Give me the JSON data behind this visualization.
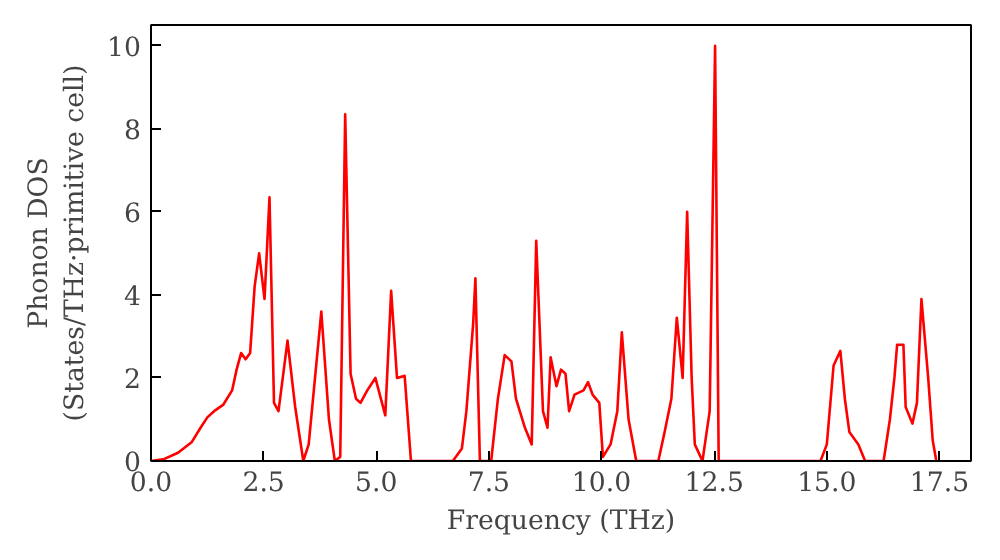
{
  "chart_data": {
    "type": "line",
    "xlabel": "Frequency (THz)",
    "ylabel": "Phonon DOS\n(States/THz·primitive cell)",
    "xlim": [
      0,
      18.2
    ],
    "ylim": [
      0,
      10.5
    ],
    "xticks": [
      {
        "value": 0,
        "label": "0.0"
      },
      2.5,
      {
        "value": 5,
        "label": "5.0"
      },
      7.5,
      {
        "value": 10,
        "label": "10.0"
      },
      12.5,
      {
        "value": 15,
        "label": "15.0"
      },
      17.5
    ],
    "yticks": [
      0,
      2,
      4,
      6,
      8,
      10
    ],
    "grid": false,
    "series": [
      {
        "color": "#ff0000",
        "x": [
          0,
          0.3,
          0.6,
          0.9,
          1.1,
          1.25,
          1.4,
          1.6,
          1.8,
          1.9,
          2.0,
          2.1,
          2.2,
          2.3,
          2.4,
          2.52,
          2.63,
          2.73,
          2.83,
          3.03,
          3.2,
          3.38,
          3.5,
          3.78,
          3.95,
          4.08,
          4.2,
          4.31,
          4.43,
          4.55,
          4.65,
          4.8,
          4.98,
          5.2,
          5.33,
          5.46,
          5.63,
          5.77,
          6.7,
          6.9,
          7.0,
          7.15,
          7.2,
          7.3,
          7.55,
          7.7,
          7.85,
          8.0,
          8.1,
          8.3,
          8.45,
          8.55,
          8.7,
          8.8,
          8.87,
          9.0,
          9.1,
          9.2,
          9.28,
          9.4,
          9.6,
          9.7,
          9.8,
          9.95,
          10.03,
          10.2,
          10.35,
          10.45,
          10.6,
          10.77,
          11.26,
          11.4,
          11.55,
          11.67,
          11.8,
          11.9,
          12.0,
          12.07,
          12.24,
          12.4,
          12.52,
          12.6,
          14.86,
          15.0,
          15.15,
          15.3,
          15.4,
          15.5,
          15.7,
          15.85,
          16.26,
          16.4,
          16.5,
          16.56,
          16.7,
          16.75,
          16.9,
          17.0,
          17.1,
          17.25,
          17.35,
          17.43
        ],
        "values": [
          0,
          0.05,
          0.2,
          0.45,
          0.8,
          1.05,
          1.2,
          1.35,
          1.7,
          2.2,
          2.6,
          2.45,
          2.6,
          4.2,
          5.0,
          3.9,
          6.35,
          1.4,
          1.2,
          2.9,
          1.3,
          0.0,
          0.4,
          3.6,
          1.0,
          0.0,
          0.1,
          8.35,
          2.1,
          1.5,
          1.4,
          1.7,
          2.0,
          1.1,
          4.1,
          2.0,
          2.05,
          0.0,
          0.0,
          0.3,
          1.2,
          3.3,
          4.4,
          0.0,
          0.0,
          1.5,
          2.55,
          2.4,
          1.5,
          0.8,
          0.4,
          5.3,
          1.2,
          0.8,
          2.5,
          1.8,
          2.2,
          2.1,
          1.2,
          1.6,
          1.7,
          1.9,
          1.6,
          1.4,
          0.1,
          0.4,
          1.2,
          3.1,
          1.0,
          0.0,
          0.0,
          0.7,
          1.5,
          3.45,
          2.0,
          6.0,
          2.0,
          0.4,
          0.0,
          1.2,
          10.0,
          0.0,
          0.0,
          0.4,
          2.3,
          2.65,
          1.5,
          0.7,
          0.4,
          0.0,
          0.0,
          1.0,
          2.0,
          2.8,
          2.8,
          1.3,
          0.9,
          1.4,
          3.9,
          2.0,
          0.5,
          0.0
        ]
      }
    ]
  }
}
